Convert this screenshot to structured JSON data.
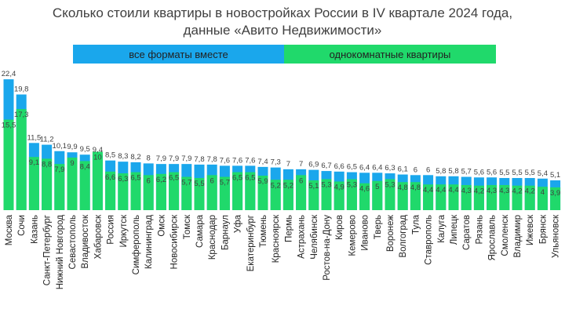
{
  "chart_data": {
    "type": "bar",
    "title": "Сколько стоили квартиры в новостройках России в IV квартале 2024 года,",
    "subtitle": "данные «Авито Недвижимости»",
    "categories": [
      "Москва",
      "Сочи",
      "Казань",
      "Санкт-Петербург",
      "Нижний Новгород",
      "Севастополь",
      "Владивосток",
      "Хабаровск",
      "Россия",
      "Иркутск",
      "Симферополь",
      "Калининград",
      "Омск",
      "Новосибирск",
      "Томск",
      "Самара",
      "Краснодар",
      "Барнаул",
      "Уфа",
      "Екатеринбург",
      "Тюмень",
      "Красноярск",
      "Пермь",
      "Астрахань",
      "Челябинск",
      "Ростов-на-Дону",
      "Киров",
      "Кемерово",
      "Иваново",
      "Тверь",
      "Воронеж",
      "Волгоград",
      "Тула",
      "Ставрополь",
      "Калуга",
      "Липецк",
      "Саратов",
      "Рязань",
      "Ярославль",
      "Смоленск",
      "Владимир",
      "Ижевск",
      "Брянск",
      "Ульяновск"
    ],
    "series": [
      {
        "name": "все форматы вместе",
        "color": "#1aa7ec",
        "values": [
          22.4,
          19.8,
          11.5,
          11.2,
          10.1,
          9.9,
          9.5,
          9.4,
          8.5,
          8.3,
          8.2,
          8,
          7.9,
          7.9,
          7.9,
          7.8,
          7.8,
          7.6,
          7.6,
          7.6,
          7.4,
          7.3,
          7,
          7,
          6.9,
          6.7,
          6.6,
          6.5,
          6.4,
          6.4,
          6.3,
          6.1,
          6,
          6,
          5.8,
          5.8,
          5.7,
          5.6,
          5.6,
          5.5,
          5.5,
          5.5,
          5.4,
          5.1
        ],
        "labels": [
          "22,4",
          "19,8",
          "11,5",
          "11,2",
          "10,1",
          "9,9",
          "9,5",
          "9,4",
          "8,5",
          "8,3",
          "8,2",
          "8",
          "7,9",
          "7,9",
          "7,9",
          "7,8",
          "7,8",
          "7,6",
          "7,6",
          "7,6",
          "7,4",
          "7,3",
          "7",
          "7",
          "6,9",
          "6,7",
          "6,6",
          "6,5",
          "6,4",
          "6,4",
          "6,3",
          "6,1",
          "6",
          "6",
          "5,8",
          "5,8",
          "5,7",
          "5,6",
          "5,6",
          "5,5",
          "5,5",
          "5,5",
          "5,4",
          "5,1"
        ]
      },
      {
        "name": "однокомнатные квартиры",
        "color": "#20d96b",
        "values": [
          15.5,
          17.3,
          9.1,
          8.8,
          7.9,
          9,
          8.4,
          10,
          6.6,
          6.3,
          6.5,
          6,
          6.2,
          6.5,
          5.7,
          5.5,
          6,
          5.7,
          6.5,
          6.5,
          5.9,
          5.2,
          5.2,
          6,
          5.1,
          5.3,
          4.9,
          5.3,
          4.6,
          5,
          5.3,
          4.8,
          4.8,
          4.4,
          4.4,
          4.4,
          4.3,
          4.2,
          4.3,
          4.3,
          4.2,
          4.2,
          4,
          3.9
        ],
        "labels": [
          "15,5",
          "17,3",
          "9,1",
          "8,8",
          "7,9",
          "9",
          "8,4",
          "10",
          "6,6",
          "6,3",
          "6,5",
          "6",
          "6,2",
          "6,5",
          "5,7",
          "5,5",
          "6",
          "5,7",
          "6,5",
          "6,5",
          "5,9",
          "5,2",
          "5,2",
          "6",
          "5,1",
          "5,3",
          "4,9",
          "5,3",
          "4,6",
          "5",
          "5,3",
          "4,8",
          "4,8",
          "4,4",
          "4,4",
          "4,4",
          "4,3",
          "4,2",
          "4,3",
          "4,3",
          "4,2",
          "4,2",
          "4",
          "3,9"
        ]
      }
    ],
    "legend_position": "top",
    "grid": false
  }
}
